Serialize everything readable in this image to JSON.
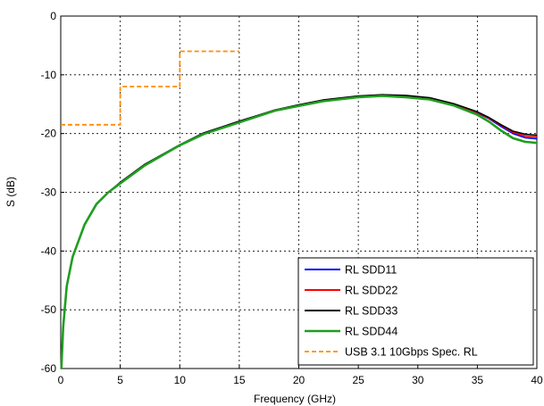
{
  "chart_data": {
    "type": "line",
    "title": "",
    "xlabel": "Frequency (GHz)",
    "ylabel": "S (dB)",
    "xlim": [
      0,
      40
    ],
    "ylim": [
      -60,
      0
    ],
    "xticks": [
      0,
      5,
      10,
      15,
      20,
      25,
      30,
      35,
      40
    ],
    "yticks": [
      0,
      -10,
      -20,
      -30,
      -40,
      -50,
      -60
    ],
    "xtick_labels": [
      "0",
      "5",
      "10",
      "15",
      "20",
      "25",
      "30",
      "35",
      "40"
    ],
    "ytick_labels": [
      "0",
      "-10",
      "-20",
      "-30",
      "-40",
      "-50",
      "-60"
    ],
    "grid": true,
    "legend_position": "bottom-right",
    "series": [
      {
        "name": "RL SDD11",
        "color": "#0000ff",
        "style": "solid",
        "x": [
          0.05,
          0.2,
          0.5,
          1,
          2,
          3,
          4,
          5,
          7,
          10,
          12,
          15,
          18,
          20,
          22,
          25,
          27,
          29,
          31,
          33,
          35,
          36,
          37,
          38,
          39,
          39.5,
          40
        ],
        "y": [
          -60,
          -53,
          -46,
          -41,
          -35.5,
          -32,
          -30,
          -28.5,
          -25.5,
          -22,
          -20,
          -18,
          -16,
          -15.2,
          -14.4,
          -13.7,
          -13.5,
          -13.6,
          -14,
          -15,
          -16.5,
          -17.5,
          -18.8,
          -20,
          -20.7,
          -20.8,
          -20.9
        ]
      },
      {
        "name": "RL SDD22",
        "color": "#ff0000",
        "style": "solid",
        "x": [
          0.05,
          0.2,
          0.5,
          1,
          2,
          3,
          4,
          5,
          7,
          10,
          12,
          15,
          18,
          20,
          22,
          25,
          27,
          29,
          31,
          33,
          35,
          36,
          37,
          38,
          39,
          39.5,
          40
        ],
        "y": [
          -60,
          -53,
          -46,
          -41,
          -35.5,
          -32,
          -30,
          -28.5,
          -25.5,
          -22,
          -20,
          -18,
          -16,
          -15.2,
          -14.4,
          -13.7,
          -13.4,
          -13.6,
          -14,
          -15,
          -16.4,
          -17.4,
          -18.6,
          -19.8,
          -20.4,
          -20.5,
          -20.6
        ]
      },
      {
        "name": "RL SDD33",
        "color": "#000000",
        "style": "solid",
        "x": [
          0.05,
          0.2,
          0.5,
          1,
          2,
          3,
          4,
          5,
          7,
          10,
          12,
          15,
          18,
          20,
          22,
          25,
          27,
          29,
          31,
          33,
          35,
          36,
          37,
          38,
          39,
          39.5,
          40
        ],
        "y": [
          -60,
          -53,
          -46,
          -41,
          -35.5,
          -32,
          -30,
          -28.3,
          -25.3,
          -21.9,
          -19.9,
          -17.9,
          -16,
          -15.1,
          -14.3,
          -13.6,
          -13.4,
          -13.5,
          -13.9,
          -14.9,
          -16.3,
          -17.3,
          -18.5,
          -19.6,
          -20.1,
          -20.2,
          -20.3
        ]
      },
      {
        "name": "RL SDD44",
        "color": "#1f9e1f",
        "style": "solid",
        "x": [
          0.05,
          0.2,
          0.5,
          1,
          2,
          3,
          4,
          5,
          7,
          10,
          12,
          15,
          18,
          20,
          22,
          25,
          27,
          29,
          31,
          33,
          35,
          36,
          37,
          38,
          39,
          39.5,
          40
        ],
        "y": [
          -60,
          -53,
          -46,
          -41,
          -35.5,
          -32,
          -30,
          -28.5,
          -25.5,
          -22,
          -20.1,
          -18.1,
          -16.1,
          -15.3,
          -14.5,
          -13.8,
          -13.6,
          -13.8,
          -14.2,
          -15.2,
          -16.8,
          -18,
          -19.5,
          -20.8,
          -21.4,
          -21.5,
          -21.6
        ]
      },
      {
        "name": "USB 3.1 10Gbps Spec. RL",
        "color": "#ff8c00",
        "style": "dashed",
        "x": [
          0,
          5,
          5,
          10,
          10,
          15
        ],
        "y": [
          -18.5,
          -18.5,
          -12,
          -12,
          -6,
          -6
        ]
      }
    ]
  }
}
